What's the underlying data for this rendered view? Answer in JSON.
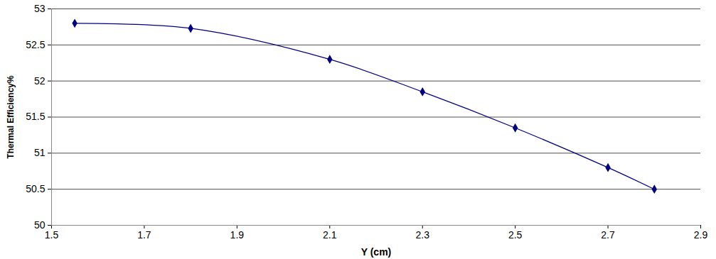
{
  "chart_data": {
    "type": "line",
    "x_label": "Y (cm)",
    "y_label": "Thermal Efficiency%",
    "x": [
      1.55,
      1.8,
      2.1,
      2.3,
      2.5,
      2.7,
      2.8
    ],
    "series": [
      {
        "name": null,
        "color": "#000080",
        "marker": "diamond",
        "line_style": "solid",
        "values": [
          52.8,
          52.73,
          52.3,
          51.85,
          51.35,
          50.8,
          50.5
        ]
      }
    ],
    "xlim": [
      1.5,
      2.9
    ],
    "xticks": [
      1.5,
      1.7,
      1.9,
      2.1,
      2.3,
      2.5,
      2.7,
      2.9
    ],
    "ylim": [
      50,
      53
    ],
    "yticks": [
      50,
      50.5,
      51,
      51.5,
      52,
      52.5,
      53
    ],
    "grid": true
  }
}
